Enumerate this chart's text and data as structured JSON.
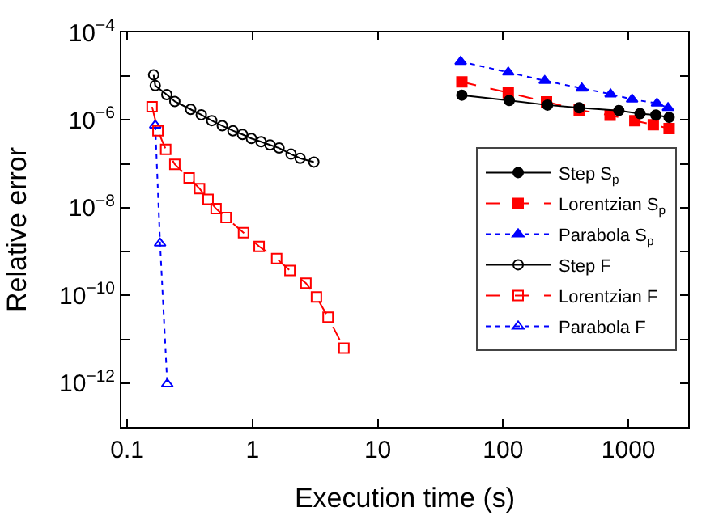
{
  "chart_data": {
    "type": "line",
    "xlabel": "Execution time (s)",
    "ylabel": "Relative error",
    "log": "xy",
    "legend": "right",
    "xlim": [
      0.09,
      3000
    ],
    "xticks": [
      0.1,
      1,
      10,
      100,
      1000
    ],
    "ylim": [
      1e-13,
      0.0001
    ],
    "yticks": [
      {
        "value": 0.0001,
        "label": "10$^{−4}$"
      },
      {
        "value": 1e-05,
        "label": null
      },
      {
        "value": 1e-06,
        "label": "10$^{−6}$"
      },
      {
        "value": 1e-07,
        "label": null
      },
      {
        "value": 1e-08,
        "label": "10$^{−8}$"
      },
      {
        "value": 1e-09,
        "label": null
      },
      {
        "value": 1e-10,
        "label": "10$^{−10}$"
      },
      {
        "value": 1e-11,
        "label": null
      },
      {
        "value": 1e-12,
        "label": "10$^{−12}$"
      }
    ],
    "series": [
      {
        "name": "Step S$_{p}$",
        "color": "#000000",
        "marker": "circle",
        "line_style": "solid",
        "x": [
          46.9,
          112,
          226,
          405,
          839,
          1238,
          1657,
          2113
        ],
        "values": [
          3.7e-06,
          2.8e-06,
          2.2e-06,
          1.9e-06,
          1.65e-06,
          1.4e-06,
          1.3e-06,
          1.15e-06
        ]
      },
      {
        "name": "Lorentzian S$_{p}$",
        "color": "#ff0000",
        "marker": "square",
        "line_style": "dashed",
        "x": [
          46.9,
          110,
          222,
          405,
          714,
          1125,
          1580,
          2113
        ],
        "values": [
          7.4e-06,
          4.2e-06,
          2.6e-06,
          1.7e-06,
          1.29e-06,
          9.7e-07,
          7.8e-07,
          6.4e-07
        ]
      },
      {
        "name": "Parabola S$_{p}$",
        "color": "#0000ff",
        "marker": "triangle",
        "line_style": "dotted",
        "x": [
          45.9,
          110,
          215,
          425,
          720,
          1070,
          1690,
          2070
        ],
        "values": [
          2.15e-05,
          1.23e-05,
          7.9e-06,
          5.3e-06,
          3.9e-06,
          2.97e-06,
          2.4e-06,
          1.9e-06
        ]
      },
      {
        "name": "Step F",
        "color": "#000000",
        "marker": "circle",
        "line_style": "solid",
        "x": [
          0.1626,
          0.1675,
          0.207,
          0.24,
          0.321,
          0.39,
          0.473,
          0.574,
          0.698,
          0.832,
          0.98,
          1.17,
          1.38,
          1.63,
          2.03,
          2.4,
          3.09
        ],
        "values": [
          1.07e-05,
          6.1e-06,
          3.8e-06,
          2.65e-06,
          1.75e-06,
          1.32e-06,
          9.7e-07,
          7.4e-07,
          5.7e-07,
          4.7e-07,
          3.8e-07,
          3.2e-07,
          2.7e-07,
          2.3e-07,
          1.67e-07,
          1.34e-07,
          1.1e-07
        ]
      },
      {
        "name": "Lorentzian F",
        "color": "#ff0000",
        "marker": "square",
        "line_style": "dashed",
        "x": [
          0.158,
          0.176,
          0.203,
          0.24,
          0.312,
          0.378,
          0.442,
          0.512,
          0.615,
          0.848,
          1.13,
          1.56,
          1.99,
          2.67,
          3.24,
          4.01,
          5.37
        ],
        "values": [
          2e-06,
          5.7e-07,
          2.15e-07,
          9.8e-08,
          4.8e-08,
          2.74e-08,
          1.56e-08,
          9.5e-09,
          6e-09,
          2.7e-09,
          1.31e-09,
          6.9e-10,
          3.7e-10,
          1.9e-10,
          9.2e-11,
          3.2e-11,
          6.3e-12
        ]
      },
      {
        "name": "Parabola F",
        "color": "#0000ff",
        "marker": "triangle",
        "line_style": "dotted",
        "x": [
          0.1675,
          0.183,
          0.209
        ],
        "values": [
          7.6e-07,
          1.55e-09,
          9.5e-13
        ]
      }
    ]
  }
}
